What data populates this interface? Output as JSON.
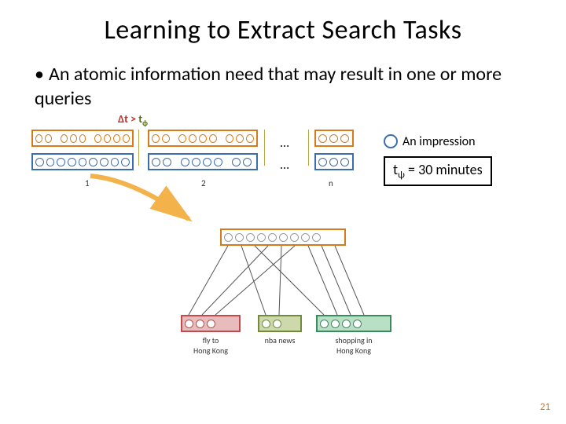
{
  "title": "Learning to Extract Search Tasks",
  "bullet": "An atomic information need that may result in one or more queries",
  "delta_label": {
    "prefix": "Δt",
    "op": ">",
    "thresh": "t",
    "thresh_sub": "ϕ"
  },
  "top_diagram": {
    "row1": {
      "border_color": "#d97a1a",
      "groups": [
        [
          2,
          3,
          4
        ],
        [
          2,
          4,
          3
        ],
        [
          3
        ]
      ]
    },
    "row2": {
      "border_color": "#3c6db0",
      "groups": [
        [
          9
        ],
        [
          2,
          4,
          2
        ],
        [
          3
        ]
      ]
    },
    "segment_labels": [
      "1",
      "2",
      "n"
    ],
    "ellipsis": "..."
  },
  "legend": {
    "label": "An impression"
  },
  "threshold": {
    "t": "t",
    "sub": "ψ",
    "eq": "= 30 minutes"
  },
  "bottom_diagram": {
    "source_box": {
      "border_color": "#d97a1a",
      "count": 9
    },
    "tasks": [
      {
        "label": "fly to\nHong Kong",
        "border_color": "#c24a4a",
        "fill": "#e8bcbc",
        "circle_border": "#c24a4a",
        "count": 3
      },
      {
        "label": "nba news",
        "border_color": "#6f8c3a",
        "fill": "#cdd9aa",
        "circle_border": "#6f8c3a",
        "count": 2
      },
      {
        "label": "shopping in\nHong Kong",
        "border_color": "#3a8c5e",
        "fill": "#b8e0c4",
        "circle_border": "#3a8c5e",
        "count": 4
      }
    ]
  },
  "page_number": "21"
}
